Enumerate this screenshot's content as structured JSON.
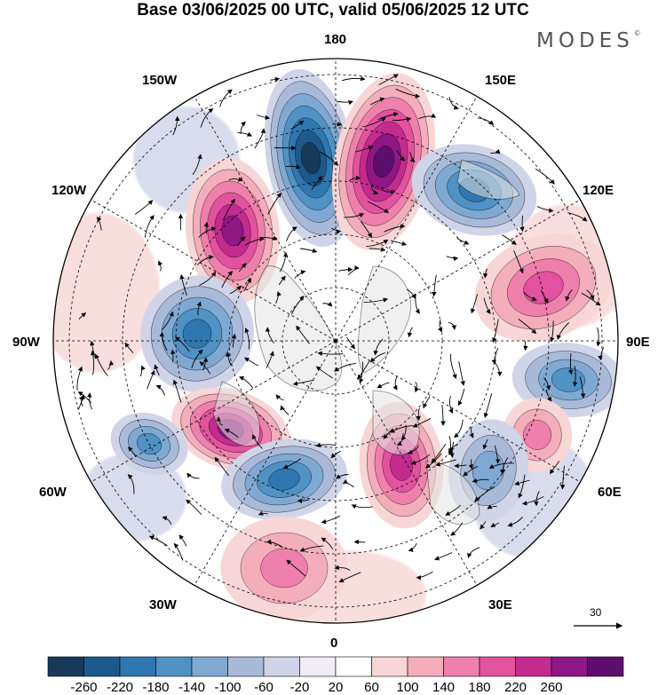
{
  "title": "Base 03/06/2025 00 UTC, valid 05/06/2025 12 UTC",
  "brand": "MODES",
  "brand_mark": "©",
  "longitude_labels": {
    "top": "180",
    "top_left": "150W",
    "top_right": "150E",
    "upper_left": "120W",
    "upper_right": "120E",
    "left": "90W",
    "right": "90E",
    "lower_left": "60W",
    "lower_right": "60E",
    "bottom_left": "30W",
    "bottom_right": "30E",
    "bottom": "0"
  },
  "reference_vector": {
    "value": "30"
  },
  "colorbar": {
    "labels": [
      "-260",
      "-220",
      "-180",
      "-140",
      "-100",
      "-60",
      "-20",
      "20",
      "60",
      "100",
      "140",
      "180",
      "220",
      "260"
    ],
    "colors": [
      "#173a5a",
      "#1d5a8b",
      "#2f77b0",
      "#4f92c3",
      "#7fa9d2",
      "#a9bad9",
      "#d0d4e8",
      "#f0edf5",
      "#ffffff",
      "#f8d6d6",
      "#f3adbb",
      "#ee80ab",
      "#e2529e",
      "#c42b8e",
      "#8e1783",
      "#5e0f6e"
    ]
  },
  "anomaly_centers": [
    {
      "sign": "negative",
      "magnitude": 250
    },
    {
      "sign": "positive",
      "magnitude": 240
    },
    {
      "sign": "negative",
      "magnitude": 150
    },
    {
      "sign": "positive",
      "magnitude": 200
    },
    {
      "sign": "negative",
      "magnitude": 160
    },
    {
      "sign": "positive",
      "magnitude": 180
    },
    {
      "sign": "negative",
      "magnitude": 120
    },
    {
      "sign": "negative",
      "magnitude": 150
    },
    {
      "sign": "positive",
      "magnitude": 170
    },
    {
      "sign": "positive",
      "magnitude": 110
    },
    {
      "sign": "negative",
      "magnitude": 100
    },
    {
      "sign": "positive",
      "magnitude": 70
    },
    {
      "sign": "negative",
      "magnitude": 90
    },
    {
      "sign": "positive",
      "magnitude": 60
    }
  ]
}
